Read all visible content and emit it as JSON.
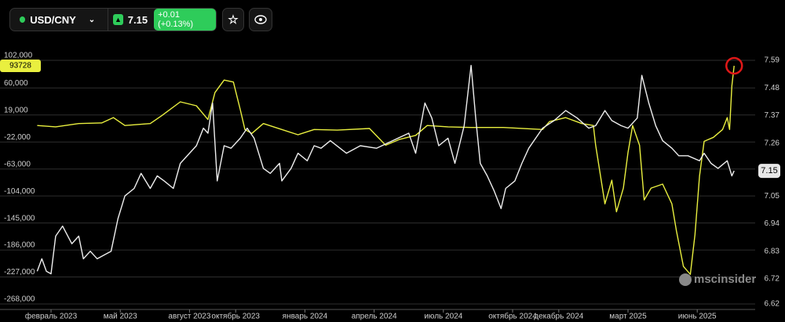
{
  "header": {
    "symbol": "USD/CNY",
    "price": "7.15",
    "change": "+0.01 (+0.13%)"
  },
  "watermark": "mscinsider",
  "chart_data": {
    "type": "line",
    "grid": true,
    "xlim": [
      -0.8,
      30
    ],
    "xticks": [
      {
        "value": 0,
        "label": "февраль 2023"
      },
      {
        "value": 3,
        "label": "май 2023"
      },
      {
        "value": 6,
        "label": "август 2023"
      },
      {
        "value": 8,
        "label": "октябрь 2023"
      },
      {
        "value": 11,
        "label": "январь 2024"
      },
      {
        "value": 14,
        "label": "апрель 2024"
      },
      {
        "value": 17,
        "label": "июль 2024"
      },
      {
        "value": 20,
        "label": "октябрь 2024"
      },
      {
        "value": 22,
        "label": "декабрь 2024"
      },
      {
        "value": 25,
        "label": "март 2025"
      },
      {
        "value": 28,
        "label": "июнь 2025"
      }
    ],
    "ylim": [
      -268000,
      102000
    ],
    "yticks": [
      {
        "value": 102000,
        "label": "102,000"
      },
      {
        "value": 60000,
        "label": "60,000"
      },
      {
        "value": 19000,
        "label": "19,000"
      },
      {
        "value": -22000,
        "label": "-22,000"
      },
      {
        "value": -63000,
        "label": "-63,000"
      },
      {
        "value": -104000,
        "label": "-104,000"
      },
      {
        "value": -145000,
        "label": "-145,000"
      },
      {
        "value": -186000,
        "label": "-186,000"
      },
      {
        "value": -227000,
        "label": "-227,000"
      },
      {
        "value": -268000,
        "label": "-268,000"
      }
    ],
    "y2lim": [
      6.62,
      7.59
    ],
    "y2ticks": [
      7.59,
      7.48,
      7.37,
      7.26,
      7.05,
      6.94,
      6.83,
      6.72,
      6.62
    ],
    "series": [
      {
        "color": "#e9ef3f",
        "x": [
          -0.6,
          0.2,
          1.2,
          2.2,
          2.7,
          3.2,
          4.3,
          4.8,
          5.6,
          6.3,
          6.8,
          7.1,
          7.5,
          7.9,
          8.2,
          8.4,
          8.7,
          9.2,
          10.0,
          10.7,
          11.4,
          12.4,
          13.8,
          14.5,
          15.1,
          15.8,
          16.3,
          17.2,
          18.2,
          19.6,
          21.3,
          21.6,
          22.3,
          23.0,
          23.5,
          23.6,
          24.0,
          24.3,
          24.5,
          24.8,
          25.0,
          25.2,
          25.5,
          25.7,
          26.0,
          26.5,
          26.9,
          27.1,
          27.4,
          27.7,
          27.9,
          28.1,
          28.3,
          28.7,
          29.1,
          29.3,
          29.4,
          29.5,
          29.6
        ],
        "values": [
          3000,
          1000,
          6000,
          7000,
          15000,
          3000,
          6000,
          18000,
          39000,
          33000,
          12000,
          53000,
          72000,
          69000,
          27000,
          -3000,
          -9000,
          6000,
          -3000,
          -11000,
          -3000,
          -4000,
          -1500,
          -27000,
          -18000,
          -12000,
          3000,
          1000,
          0,
          0,
          -3000,
          9000,
          15000,
          6000,
          3000,
          -27000,
          -116000,
          -80000,
          -128000,
          -92000,
          -38000,
          3000,
          -27000,
          -110000,
          -92000,
          -86000,
          -116000,
          -157000,
          -211000,
          -223000,
          -163000,
          -74000,
          -21000,
          -15000,
          -3000,
          15000,
          -3000,
          63000,
          93728
        ]
      },
      {
        "color": "#eeeeee",
        "axis": "y2",
        "x": [
          -0.6,
          -0.4,
          -0.2,
          0,
          0.2,
          0.5,
          0.9,
          1.2,
          1.4,
          1.7,
          2.0,
          2.4,
          2.6,
          2.9,
          3.2,
          3.6,
          3.9,
          4.3,
          4.6,
          4.9,
          5.3,
          5.6,
          6.0,
          6.3,
          6.6,
          6.8,
          7.0,
          7.2,
          7.5,
          7.8,
          8.2,
          8.5,
          8.8,
          9.2,
          9.5,
          9.9,
          10.0,
          10.4,
          10.7,
          11.1,
          11.4,
          11.7,
          12.1,
          12.8,
          13.4,
          14.1,
          14.8,
          15.5,
          15.8,
          16.2,
          16.5,
          16.8,
          17.2,
          17.5,
          17.9,
          18.2,
          18.4,
          18.6,
          18.9,
          19.2,
          19.5,
          19.7,
          20.1,
          20.4,
          20.7,
          21.3,
          21.8,
          22.3,
          22.8,
          23.3,
          23.6,
          24.0,
          24.3,
          24.7,
          25.0,
          25.4,
          25.6,
          25.9,
          26.2,
          26.5,
          26.9,
          27.2,
          27.6,
          28.1,
          28.3,
          28.6,
          28.9,
          29.3,
          29.5,
          29.6
        ],
        "values": [
          6.75,
          6.8,
          6.75,
          6.74,
          6.89,
          6.93,
          6.86,
          6.89,
          6.8,
          6.83,
          6.8,
          6.82,
          6.83,
          6.96,
          7.05,
          7.08,
          7.14,
          7.08,
          7.13,
          7.11,
          7.08,
          7.18,
          7.22,
          7.25,
          7.32,
          7.3,
          7.42,
          7.11,
          7.25,
          7.24,
          7.28,
          7.32,
          7.28,
          7.16,
          7.14,
          7.18,
          7.11,
          7.16,
          7.22,
          7.19,
          7.25,
          7.24,
          7.27,
          7.22,
          7.25,
          7.24,
          7.27,
          7.3,
          7.22,
          7.42,
          7.36,
          7.25,
          7.28,
          7.18,
          7.33,
          7.57,
          7.36,
          7.18,
          7.13,
          7.07,
          7.0,
          7.08,
          7.11,
          7.18,
          7.24,
          7.32,
          7.35,
          7.39,
          7.36,
          7.32,
          7.33,
          7.39,
          7.35,
          7.33,
          7.32,
          7.36,
          7.53,
          7.42,
          7.33,
          7.27,
          7.24,
          7.21,
          7.21,
          7.19,
          7.22,
          7.18,
          7.16,
          7.19,
          7.13,
          7.15
        ]
      }
    ]
  }
}
